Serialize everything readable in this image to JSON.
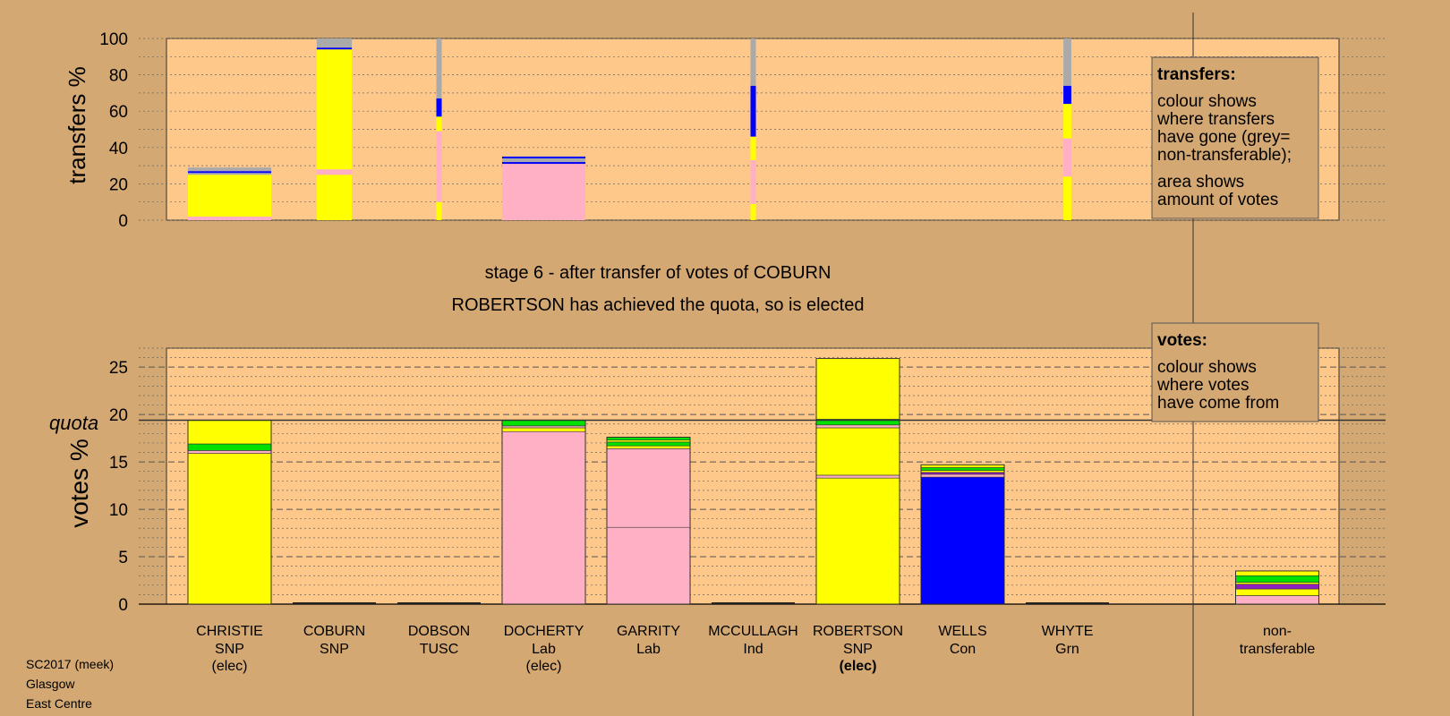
{
  "colors": {
    "page_bg": "#d4a872",
    "plot_bg": "#fdc88a",
    "snp": "#ffff00",
    "lab": "#ffb0c4",
    "con": "#0000ff",
    "grn": "#00e000",
    "ind": "#aaaaaa",
    "tusc": "#9020c0",
    "nontransferable": "#aaaaaa"
  },
  "stage_title": "stage 6 - after transfer of votes of COBURN",
  "stage_note": "ROBERTSON has achieved the quota, so is elected",
  "footer": {
    "line1": "SC2017 (meek)",
    "line2": "Glasgow",
    "line3": "East Centre"
  },
  "transfers_legend": {
    "title": "transfers:",
    "lines": [
      "colour shows",
      "where transfers",
      "have gone (grey=",
      "non-transferable);"
    ],
    "lines2": [
      "area shows",
      "amount of votes"
    ]
  },
  "votes_legend": {
    "title": "votes:",
    "lines": [
      "colour shows",
      "where votes",
      "have come from"
    ]
  },
  "quota_label": "quota",
  "chart_data": [
    {
      "type": "bar",
      "ylabel": "transfers %",
      "ylim": [
        0,
        100
      ],
      "yticks": [
        0,
        20,
        40,
        60,
        80,
        100
      ],
      "bars": [
        {
          "candidate": "CHRISTIE",
          "width_votes": 19.0,
          "segments": [
            {
              "party": "lab",
              "from": 0,
              "to": 2
            },
            {
              "party": "snp",
              "from": 2,
              "to": 25
            },
            {
              "party": "ind",
              "from": 25,
              "to": 26
            },
            {
              "party": "con",
              "from": 26,
              "to": 27
            },
            {
              "party": "ind",
              "from": 27,
              "to": 29
            }
          ]
        },
        {
          "candidate": "COBURN",
          "width_votes": 8.0,
          "segments": [
            {
              "party": "snp",
              "from": 0,
              "to": 25
            },
            {
              "party": "lab",
              "from": 25,
              "to": 28
            },
            {
              "party": "snp",
              "from": 28,
              "to": 94
            },
            {
              "party": "con",
              "from": 94,
              "to": 95
            },
            {
              "party": "ind",
              "from": 95,
              "to": 100
            }
          ]
        },
        {
          "candidate": "DOBSON",
          "width_votes": 0.5,
          "segments": [
            {
              "party": "snp",
              "from": 0,
              "to": 10
            },
            {
              "party": "lab",
              "from": 10,
              "to": 49
            },
            {
              "party": "snp",
              "from": 49,
              "to": 57
            },
            {
              "party": "con",
              "from": 57,
              "to": 67
            },
            {
              "party": "ind",
              "from": 67,
              "to": 100
            }
          ]
        },
        {
          "candidate": "DOCHERTY",
          "width_votes": 19.0,
          "segments": [
            {
              "party": "lab",
              "from": 0,
              "to": 31
            },
            {
              "party": "con",
              "from": 31,
              "to": 32
            },
            {
              "party": "ind",
              "from": 32,
              "to": 34
            },
            {
              "party": "con",
              "from": 34,
              "to": 35
            }
          ]
        },
        {
          "candidate": "MCCULLAGH",
          "width_votes": 0.5,
          "segments": [
            {
              "party": "snp",
              "from": 0,
              "to": 9
            },
            {
              "party": "lab",
              "from": 9,
              "to": 33
            },
            {
              "party": "snp",
              "from": 33,
              "to": 46
            },
            {
              "party": "con",
              "from": 46,
              "to": 74
            },
            {
              "party": "ind",
              "from": 74,
              "to": 100
            }
          ]
        },
        {
          "candidate": "WHYTE",
          "width_votes": 1.8,
          "segments": [
            {
              "party": "snp",
              "from": 0,
              "to": 24
            },
            {
              "party": "lab",
              "from": 24,
              "to": 45
            },
            {
              "party": "snp",
              "from": 45,
              "to": 64
            },
            {
              "party": "con",
              "from": 64,
              "to": 74
            },
            {
              "party": "ind",
              "from": 74,
              "to": 100
            }
          ]
        }
      ]
    },
    {
      "type": "bar",
      "ylabel": "votes %",
      "ylim": [
        0,
        27
      ],
      "yticks": [
        0,
        5,
        10,
        15,
        20,
        25
      ],
      "quota": 19.4,
      "candidates": [
        {
          "name": "CHRISTIE",
          "party": "SNP",
          "status": "(elec)",
          "status_bold": false,
          "segments": [
            {
              "party": "snp",
              "from": 0,
              "to": 15.9
            },
            {
              "party": "lab",
              "from": 15.9,
              "to": 16.2
            },
            {
              "party": "grn",
              "from": 16.2,
              "to": 16.9
            },
            {
              "party": "snp",
              "from": 16.9,
              "to": 19.4
            }
          ]
        },
        {
          "name": "COBURN",
          "party": "SNP",
          "status": "",
          "status_bold": false,
          "segments": []
        },
        {
          "name": "DOBSON",
          "party": "TUSC",
          "status": "",
          "status_bold": false,
          "segments": []
        },
        {
          "name": "DOCHERTY",
          "party": "Lab",
          "status": "(elec)",
          "status_bold": false,
          "segments": [
            {
              "party": "lab",
              "from": 0,
              "to": 18.2
            },
            {
              "party": "snp",
              "from": 18.2,
              "to": 18.6
            },
            {
              "party": "lab",
              "from": 18.6,
              "to": 18.8
            },
            {
              "party": "grn",
              "from": 18.8,
              "to": 19.4
            }
          ]
        },
        {
          "name": "GARRITY",
          "party": "Lab",
          "status": "",
          "status_bold": false,
          "segments": [
            {
              "party": "lab",
              "from": 0,
              "to": 8.1
            },
            {
              "party": "lab",
              "from": 8.1,
              "to": 16.4
            },
            {
              "party": "snp",
              "from": 16.4,
              "to": 16.7
            },
            {
              "party": "grn",
              "from": 16.7,
              "to": 17.1
            },
            {
              "party": "snp",
              "from": 17.1,
              "to": 17.3
            },
            {
              "party": "grn",
              "from": 17.3,
              "to": 17.6
            }
          ]
        },
        {
          "name": "MCCULLAGH",
          "party": "Ind",
          "status": "",
          "status_bold": false,
          "segments": []
        },
        {
          "name": "ROBERTSON",
          "party": "SNP",
          "status": "(elec)",
          "status_bold": true,
          "segments": [
            {
              "party": "snp",
              "from": 0,
              "to": 13.3
            },
            {
              "party": "lab",
              "from": 13.3,
              "to": 13.6
            },
            {
              "party": "snp",
              "from": 13.6,
              "to": 18.6
            },
            {
              "party": "lab",
              "from": 18.6,
              "to": 18.9
            },
            {
              "party": "grn",
              "from": 18.9,
              "to": 19.5
            },
            {
              "party": "snp",
              "from": 19.5,
              "to": 25.9
            }
          ]
        },
        {
          "name": "WELLS",
          "party": "Con",
          "status": "",
          "status_bold": false,
          "segments": [
            {
              "party": "con",
              "from": 0,
              "to": 13.4
            },
            {
              "party": "lab",
              "from": 13.4,
              "to": 13.7
            },
            {
              "party": "tusc",
              "from": 13.7,
              "to": 13.9
            },
            {
              "party": "snp",
              "from": 13.9,
              "to": 14.1
            },
            {
              "party": "grn",
              "from": 14.1,
              "to": 14.4
            },
            {
              "party": "snp",
              "from": 14.4,
              "to": 14.7
            }
          ]
        },
        {
          "name": "WHYTE",
          "party": "Grn",
          "status": "",
          "status_bold": false,
          "segments": []
        }
      ],
      "nontransferable": {
        "label1": "non-",
        "label2": "transferable",
        "segments": [
          {
            "party": "lab",
            "from": 0,
            "to": 0.9
          },
          {
            "party": "snp",
            "from": 0.9,
            "to": 1.6
          },
          {
            "party": "tusc",
            "from": 1.6,
            "to": 2.1
          },
          {
            "party": "snp",
            "from": 2.1,
            "to": 2.3
          },
          {
            "party": "grn",
            "from": 2.3,
            "to": 3.0
          },
          {
            "party": "snp",
            "from": 3.0,
            "to": 3.5
          }
        ]
      }
    }
  ]
}
